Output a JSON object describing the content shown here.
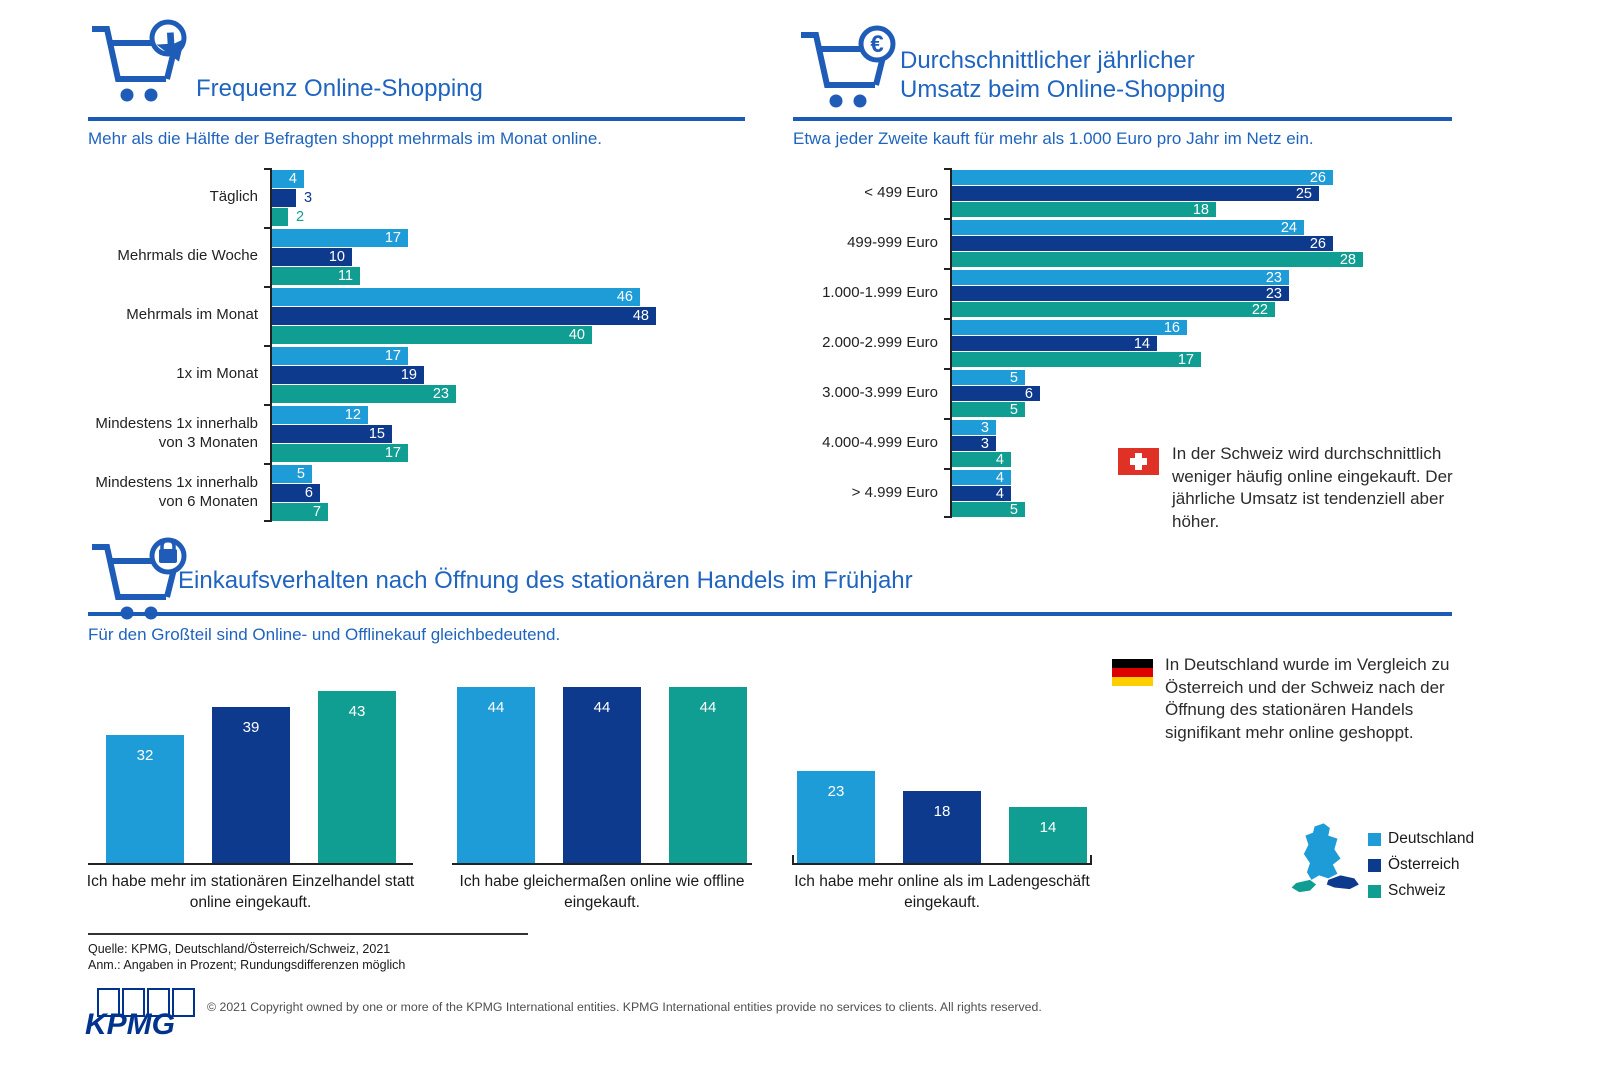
{
  "colors": {
    "deutschland": "#1E9CD8",
    "oesterreich": "#0E3A8D",
    "schweiz": "#119E92",
    "title_blue": "#1F64BE",
    "rule_blue": "#1A5CB5",
    "kpmg_blue": "#00338D"
  },
  "sections": {
    "frequency": {
      "title": "Frequenz Online-Shopping",
      "subtitle": "Mehr als die Hälfte der Befragten shoppt mehrmals im Monat online.",
      "icon": "cart-cursor-icon"
    },
    "revenue": {
      "title": "Durchschnittlicher jährlicher\nUmsatz beim Online-Shopping",
      "subtitle": "Etwa jeder Zweite kauft für mehr als 1.000 Euro pro Jahr im Netz ein.",
      "icon": "cart-euro-icon"
    },
    "behavior": {
      "title": "Einkaufsverhalten nach Öffnung des stationären Handels im Frühjahr",
      "subtitle": "Für den Großteil sind Online- und Offlinekauf gleichbedeutend.",
      "icon": "cart-lock-icon"
    }
  },
  "chart_data": [
    {
      "id": "frequency",
      "type": "bar",
      "orientation": "horizontal",
      "unit": "percent",
      "categories": [
        "Täglich",
        "Mehrmals die Woche",
        "Mehrmals im Monat",
        "1x im Monat",
        "Mindestens 1x innerhalb\nvon 3 Monaten",
        "Mindestens 1x innerhalb\nvon 6 Monaten"
      ],
      "series": [
        {
          "name": "Deutschland",
          "color": "deutschland",
          "values": [
            4,
            17,
            46,
            17,
            12,
            5
          ]
        },
        {
          "name": "Österreich",
          "color": "oesterreich",
          "values": [
            3,
            10,
            48,
            19,
            15,
            6
          ]
        },
        {
          "name": "Schweiz",
          "color": "schweiz",
          "values": [
            2,
            11,
            40,
            23,
            17,
            7
          ]
        }
      ],
      "xlim": [
        0,
        50
      ],
      "grid": false,
      "value_labels": true
    },
    {
      "id": "revenue",
      "type": "bar",
      "orientation": "horizontal",
      "unit": "percent",
      "categories": [
        "< 499 Euro",
        "499-999 Euro",
        "1.000-1.999 Euro",
        "2.000-2.999 Euro",
        "3.000-3.999 Euro",
        "4.000-4.999 Euro",
        "> 4.999 Euro"
      ],
      "series": [
        {
          "name": "Deutschland",
          "color": "deutschland",
          "values": [
            26,
            24,
            23,
            16,
            5,
            3,
            4
          ]
        },
        {
          "name": "Österreich",
          "color": "oesterreich",
          "values": [
            25,
            26,
            23,
            14,
            6,
            3,
            4
          ]
        },
        {
          "name": "Schweiz",
          "color": "schweiz",
          "values": [
            18,
            28,
            22,
            17,
            5,
            4,
            5
          ]
        }
      ],
      "xlim": [
        0,
        30
      ],
      "grid": false,
      "value_labels": true
    },
    {
      "id": "behavior",
      "type": "bar",
      "orientation": "vertical",
      "unit": "percent",
      "categories": [
        "Ich habe mehr im stationären Einzelhandel statt online eingekauft.",
        "Ich habe gleichermaßen online wie offline eingekauft.",
        "Ich habe mehr online als im Ladengeschäft eingekauft."
      ],
      "series": [
        {
          "name": "Deutschland",
          "color": "deutschland",
          "values": [
            32,
            44,
            23
          ]
        },
        {
          "name": "Österreich",
          "color": "oesterreich",
          "values": [
            39,
            44,
            18
          ]
        },
        {
          "name": "Schweiz",
          "color": "schweiz",
          "values": [
            43,
            44,
            14
          ]
        }
      ],
      "ylim": [
        0,
        48
      ],
      "grid": false,
      "value_labels": true
    }
  ],
  "notes": {
    "switzerland": {
      "flag": "switzerland-flag",
      "text": "In der Schweiz wird durchschnittlich weniger häufig online eingekauft. Der jährliche Umsatz ist tendenziell aber höher."
    },
    "germany": {
      "flag": "germany-flag",
      "text": "In Deutschland wurde im Vergleich zu Österreich und der Schweiz nach der Öffnung des stationären Handels signifikant mehr online geshoppt."
    }
  },
  "legend": {
    "items": [
      {
        "label": "Deutschland",
        "color": "deutschland"
      },
      {
        "label": "Österreich",
        "color": "oesterreich"
      },
      {
        "label": "Schweiz",
        "color": "schweiz"
      }
    ]
  },
  "footer": {
    "source_line1": "Quelle: KPMG, Deutschland/Österreich/Schweiz, 2021",
    "source_line2": "Anm.: Angaben in Prozent; Rundungsdifferenzen möglich",
    "logo_text": "KPMG",
    "copyright": "© 2021 Copyright owned by one or more of the KPMG International entities. KPMG International entities provide no services to clients. All rights reserved."
  }
}
